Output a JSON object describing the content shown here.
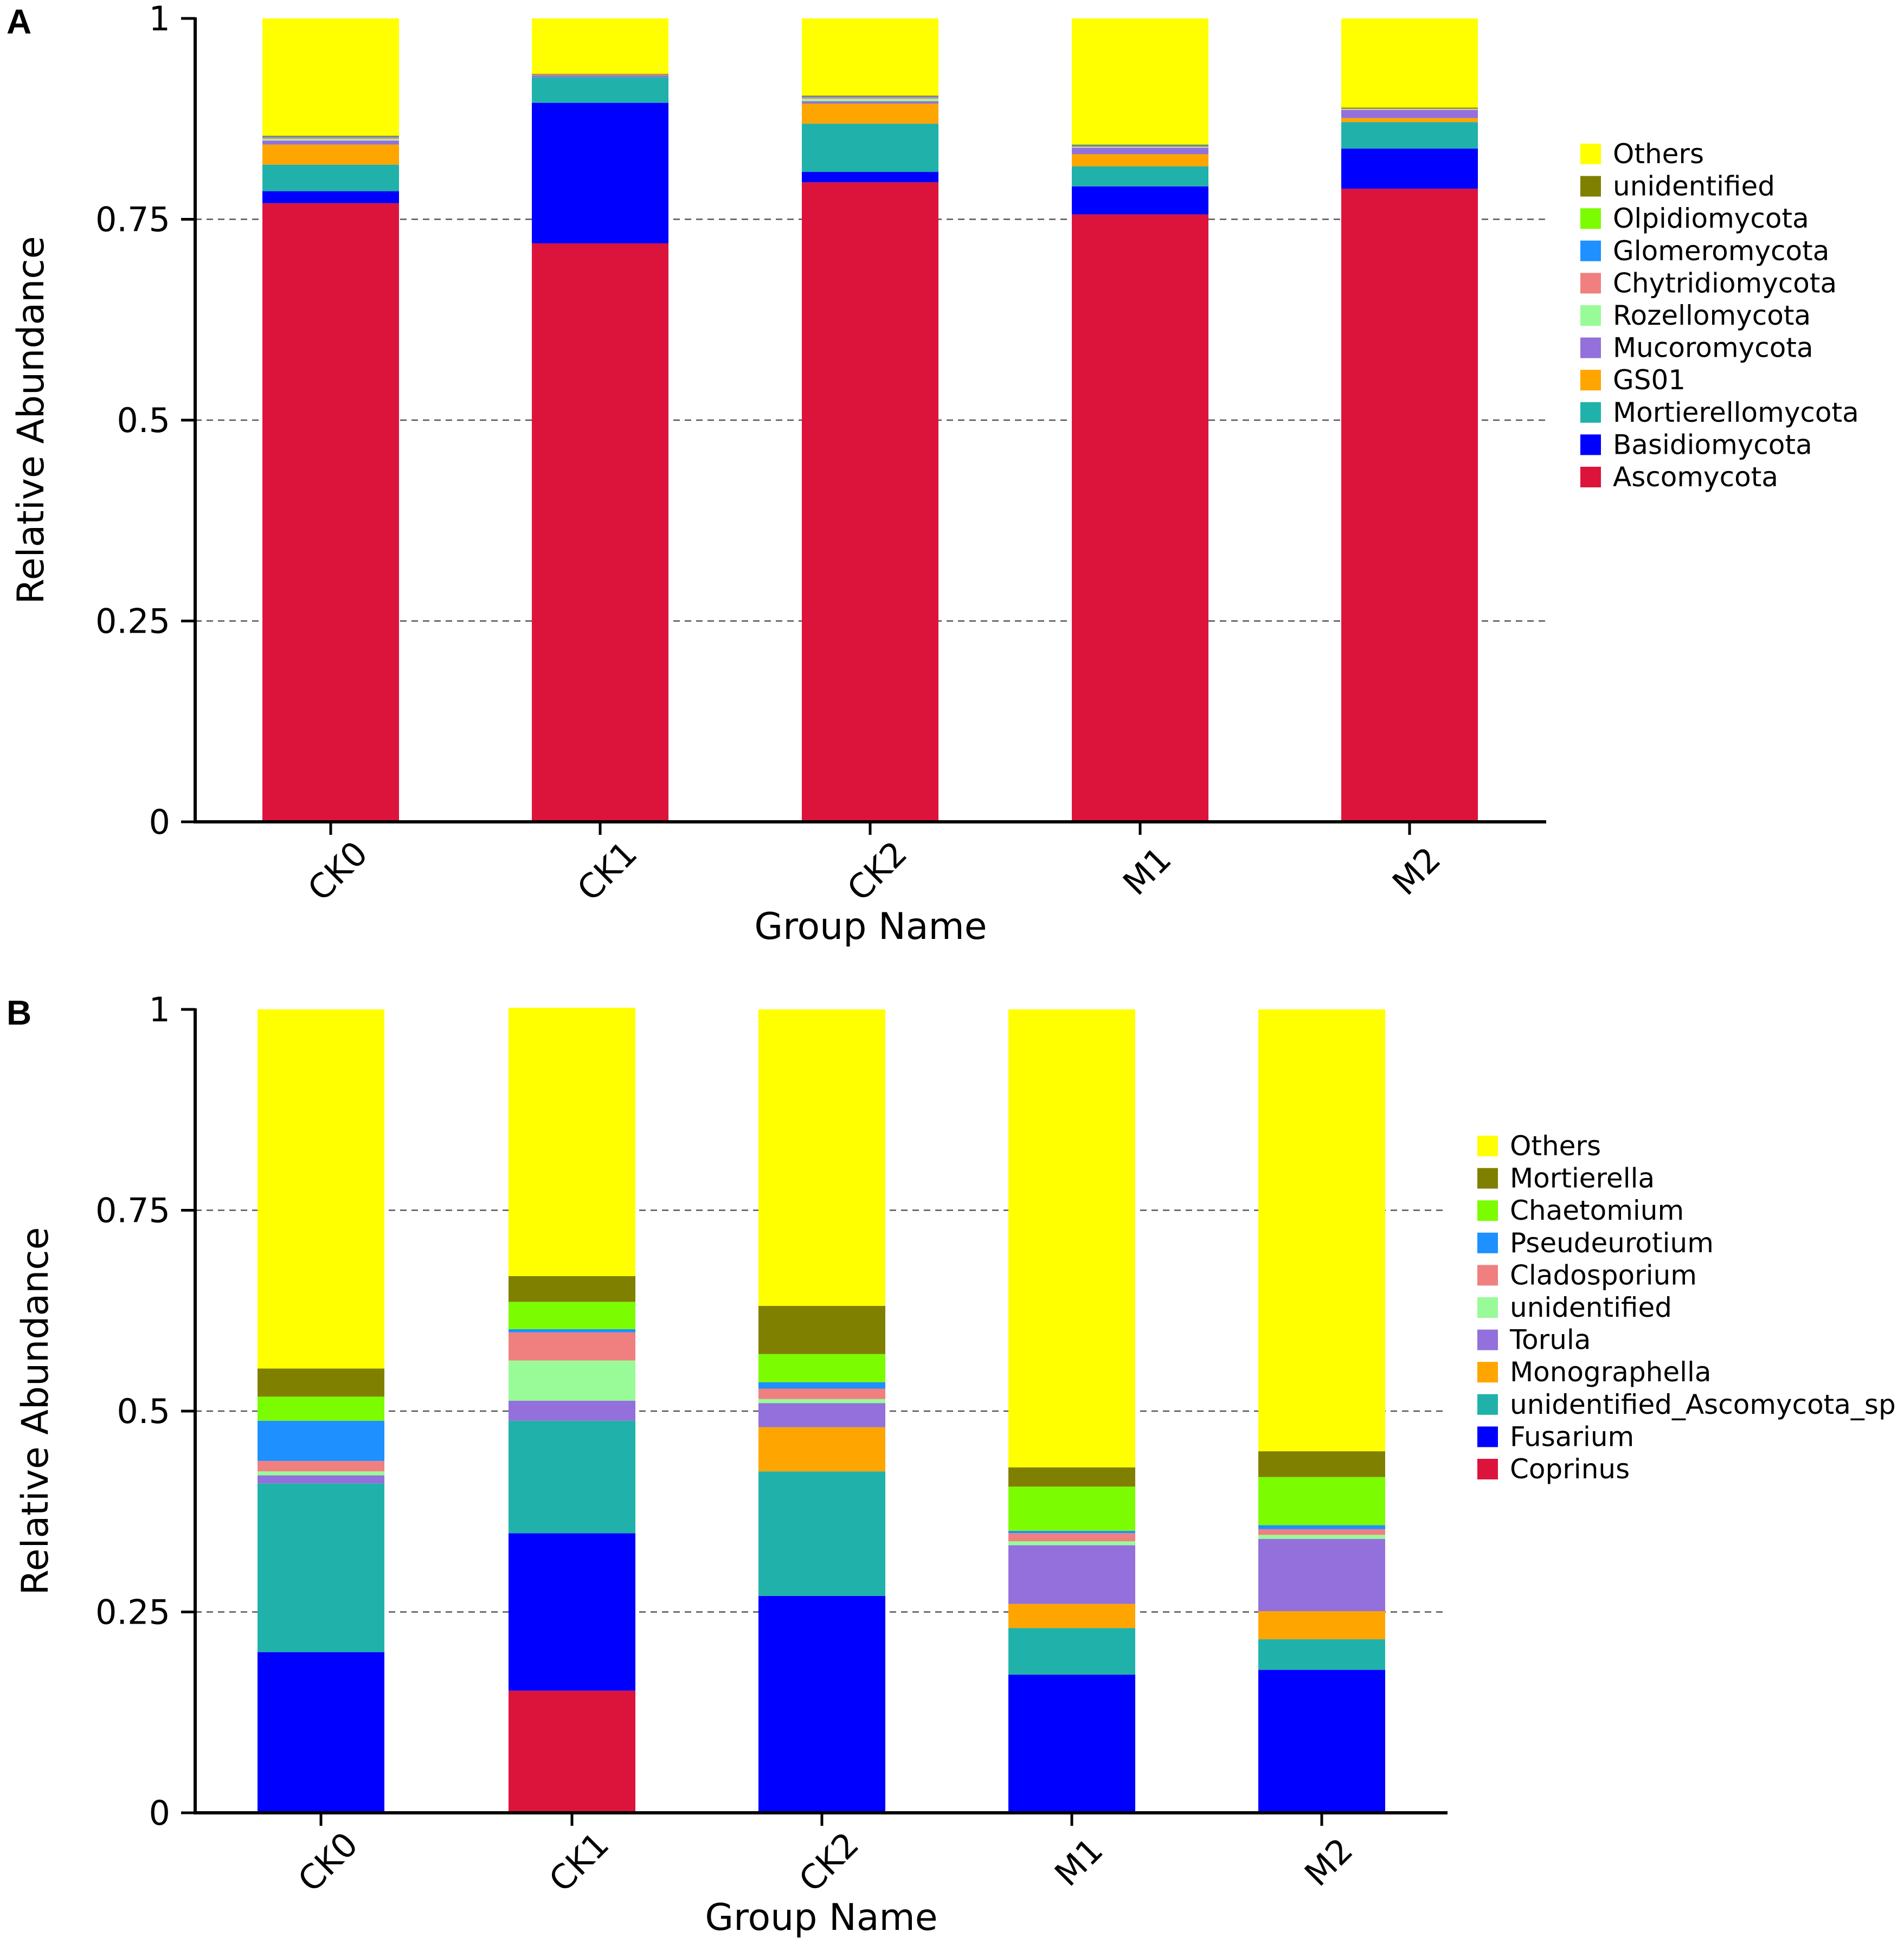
{
  "chart_data": [
    {
      "panel_label": "A",
      "type": "stacked-bar",
      "xlabel": "Group Name",
      "ylabel": "Relative Abundance",
      "ylim": [
        0,
        1
      ],
      "yticks": [
        "0",
        "0.25",
        "0.5",
        "0.75",
        "1"
      ],
      "grid": "dashed horizontal at 0.25, 0.5, 0.75",
      "categories": [
        "CK0",
        "CK1",
        "CK2",
        "M1",
        "M2"
      ],
      "series": [
        {
          "name": "Ascomycota",
          "color": "#DC143C",
          "values": [
            0.77,
            0.72,
            0.796,
            0.756,
            0.788
          ]
        },
        {
          "name": "Basidiomycota",
          "color": "#0000FF",
          "values": [
            0.015,
            0.175,
            0.013,
            0.035,
            0.05
          ]
        },
        {
          "name": "Mortierellomycota",
          "color": "#20B2AA",
          "values": [
            0.033,
            0.032,
            0.06,
            0.025,
            0.033
          ]
        },
        {
          "name": "GS01",
          "color": "#FFA500",
          "values": [
            0.025,
            0.0,
            0.025,
            0.015,
            0.005
          ]
        },
        {
          "name": "Mucoromycota",
          "color": "#9370DB",
          "values": [
            0.005,
            0.002,
            0.003,
            0.008,
            0.01
          ]
        },
        {
          "name": "Rozellomycota",
          "color": "#98FB98",
          "values": [
            0.002,
            0.0,
            0.003,
            0.001,
            0.001
          ]
        },
        {
          "name": "Chytridiomycota",
          "color": "#F08080",
          "values": [
            0.002,
            0.001,
            0.002,
            0.001,
            0.001
          ]
        },
        {
          "name": "Glomeromycota",
          "color": "#1E90FF",
          "values": [
            0.001,
            0.0,
            0.001,
            0.001,
            0.0
          ]
        },
        {
          "name": "Olpidiomycota",
          "color": "#7CFC00",
          "values": [
            0.0,
            0.0,
            0.0,
            0.0,
            0.0
          ]
        },
        {
          "name": "unidentified",
          "color": "#808000",
          "values": [
            0.001,
            0.001,
            0.001,
            0.001,
            0.001
          ]
        },
        {
          "name": "Others",
          "color": "#FFFF00",
          "values": [
            0.146,
            0.069,
            0.096,
            0.157,
            0.111
          ]
        }
      ]
    },
    {
      "panel_label": "B",
      "type": "stacked-bar",
      "xlabel": "Group Name",
      "ylabel": "Relative Abundance",
      "ylim": [
        0,
        1
      ],
      "yticks": [
        "0",
        "0.25",
        "0.5",
        "0.75",
        "1"
      ],
      "grid": "dashed horizontal at 0.25, 0.5, 0.75",
      "categories": [
        "CK0",
        "CK1",
        "CK2",
        "M1",
        "M2"
      ],
      "series": [
        {
          "name": "Coprinus",
          "color": "#DC143C",
          "values": [
            0.0,
            0.152,
            0.0,
            0.0,
            0.0
          ]
        },
        {
          "name": "Fusarium",
          "color": "#0000FF",
          "values": [
            0.2,
            0.196,
            0.27,
            0.172,
            0.178
          ]
        },
        {
          "name": "unidentified_Ascomycota_sp",
          "color": "#20B2AA",
          "values": [
            0.21,
            0.14,
            0.155,
            0.058,
            0.038
          ]
        },
        {
          "name": "Monographella",
          "color": "#FFA500",
          "values": [
            0.0,
            0.0,
            0.055,
            0.03,
            0.035
          ]
        },
        {
          "name": "Torula",
          "color": "#9370DB",
          "values": [
            0.01,
            0.025,
            0.03,
            0.073,
            0.09
          ]
        },
        {
          "name": "unidentified",
          "color": "#98FB98",
          "values": [
            0.005,
            0.05,
            0.005,
            0.005,
            0.005
          ]
        },
        {
          "name": "Cladosporium",
          "color": "#F08080",
          "values": [
            0.013,
            0.035,
            0.013,
            0.01,
            0.007
          ]
        },
        {
          "name": "Pseudeurotium",
          "color": "#1E90FF",
          "values": [
            0.05,
            0.004,
            0.008,
            0.003,
            0.005
          ]
        },
        {
          "name": "Chaetomium",
          "color": "#7CFC00",
          "values": [
            0.03,
            0.034,
            0.035,
            0.055,
            0.06
          ]
        },
        {
          "name": "Mortierella",
          "color": "#808000",
          "values": [
            0.035,
            0.032,
            0.06,
            0.024,
            0.032
          ]
        },
        {
          "name": "Others",
          "color": "#FFFF00",
          "values": [
            0.447,
            0.334,
            0.369,
            0.57,
            0.55
          ]
        }
      ]
    }
  ]
}
